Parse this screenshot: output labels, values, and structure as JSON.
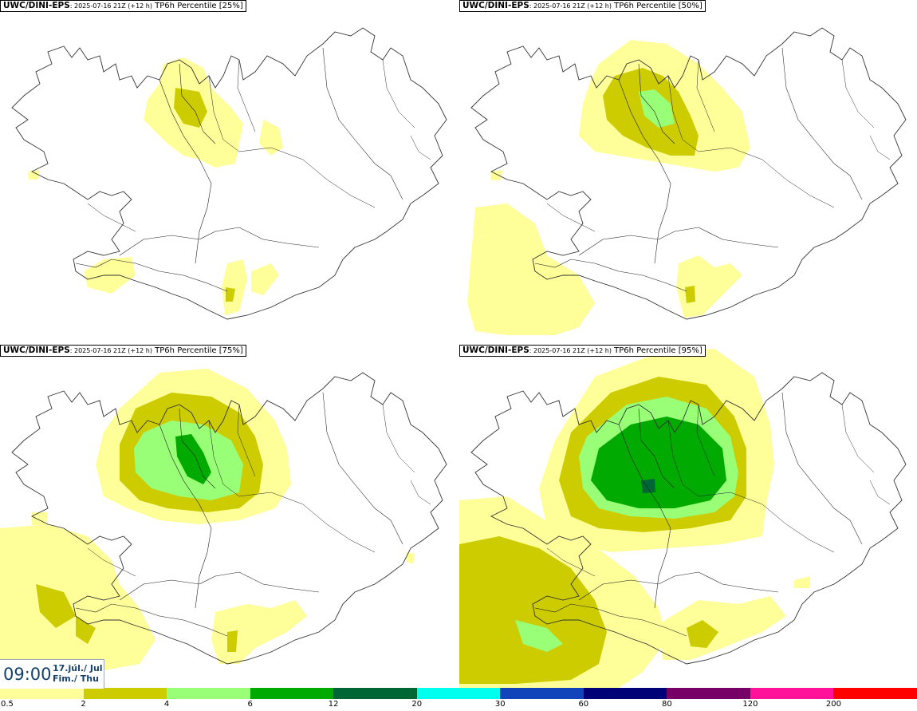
{
  "panels": [
    {
      "model": "UWC/DINI-EPS",
      "run": ": 2025-07-16 21Z (+12 h)",
      "field": "TP6h Percentile [25%]"
    },
    {
      "model": "UWC/DINI-EPS",
      "run": ": 2025-07-16 21Z (+12 h)",
      "field": "TP6h Percentile [50%]"
    },
    {
      "model": "UWC/DINI-EPS",
      "run": ": 2025-07-16 21Z (+12 h)",
      "field": "TP6h Percentile [75%]"
    },
    {
      "model": "UWC/DINI-EPS",
      "run": ": 2025-07-16 21Z (+12 h)",
      "field": "TP6h Percentile [95%]"
    }
  ],
  "valid_time": {
    "time": "09:00",
    "date_line1": "17.júl./ Jul",
    "date_line2": "Fim./ Thu"
  },
  "legend": {
    "labels": [
      "0.5",
      "2",
      "4",
      "6",
      "12",
      "20",
      "30",
      "60",
      "80",
      "120",
      "200"
    ],
    "colors": [
      "#ffff99",
      "#cccc00",
      "#99ff77",
      "#00aa00",
      "#006633",
      "#00ffee",
      "#1144bb",
      "#000077",
      "#770066",
      "#ff1199",
      "#ff0000"
    ]
  },
  "colors": {
    "land_outline": "#333333",
    "roads": "#222222"
  }
}
